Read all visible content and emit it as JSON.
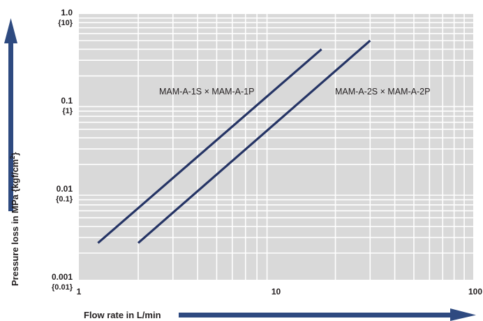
{
  "chart_data": {
    "type": "line",
    "xlabel": "Flow rate in L/min",
    "ylabel": "Pressure loss in MPa {kgf/cm",
    "ylabel_sup": "2",
    "ylabel_close": "}",
    "x_scale": "log",
    "y_scale": "log",
    "xlim": [
      1,
      100
    ],
    "ylim": [
      0.001,
      1.0
    ],
    "grid": true,
    "x_ticks": [
      "1",
      "10",
      "100"
    ],
    "y_ticks": [
      {
        "value": "1.0",
        "sub": "{10}"
      },
      {
        "value": "0.1",
        "sub": "{1}"
      },
      {
        "value": "0.01",
        "sub": "{0.1}"
      },
      {
        "value": "0.001",
        "sub": "{0.01}"
      }
    ],
    "series": [
      {
        "name": "MAM-A-1S × MAM-A-1P",
        "x": [
          1.25,
          17.0
        ],
        "y": [
          0.0026,
          0.4
        ]
      },
      {
        "name": "MAM-A-2S × MAM-A-2P",
        "x": [
          2.0,
          30.0
        ],
        "y": [
          0.0026,
          0.5
        ]
      }
    ],
    "colors": {
      "plot_bg": "#d9d9d9",
      "grid": "#ffffff",
      "line": "#253465",
      "arrow": "#2e4a80",
      "text": "#231f20"
    }
  }
}
